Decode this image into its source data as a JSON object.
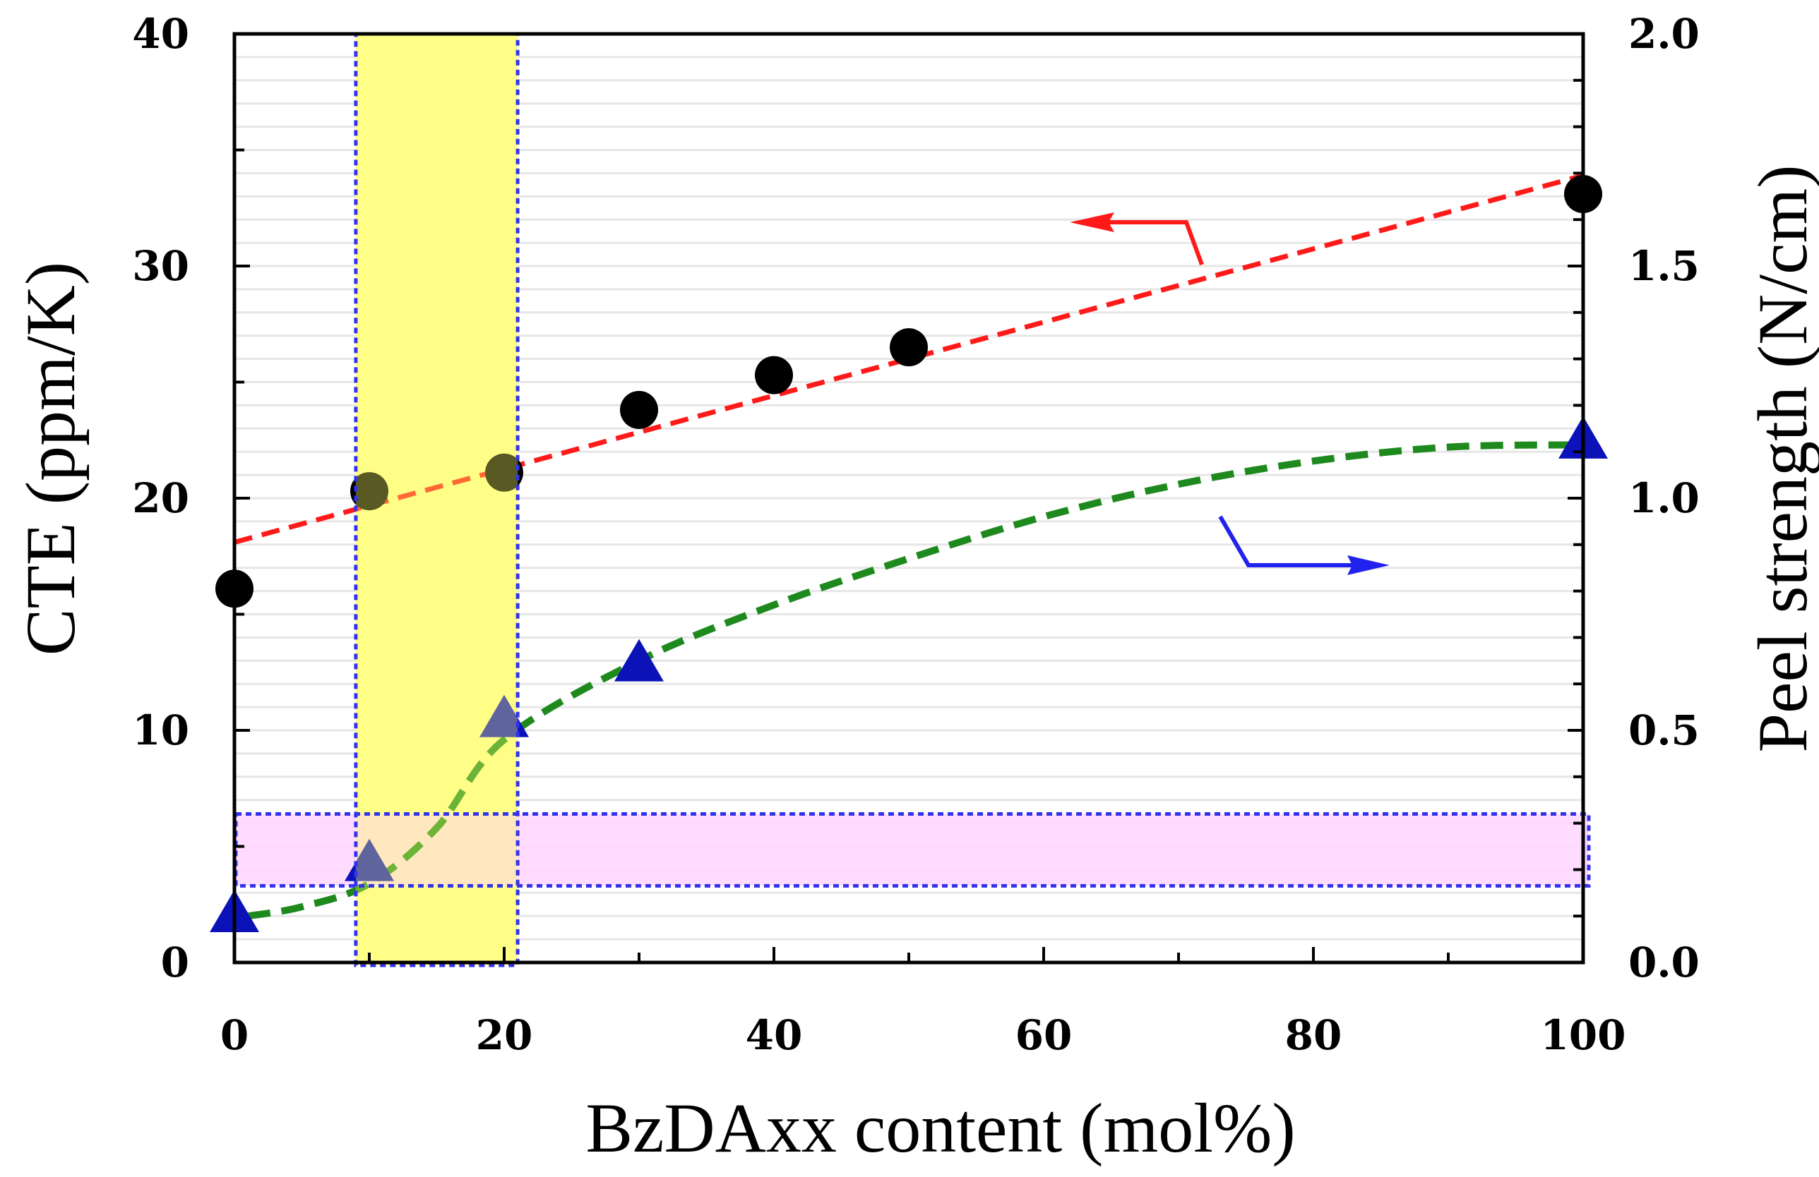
{
  "chart_data": {
    "type": "scatter",
    "title": "",
    "xlabel": "BzDAxx content (mol%)",
    "ylabel": "CTE (ppm/K)",
    "y2label": "Peel strength (N/cm)",
    "xlim": [
      0,
      100
    ],
    "ylim": [
      0,
      40
    ],
    "y2lim": [
      0,
      2.0
    ],
    "x_ticks": [
      "0",
      "20",
      "40",
      "60",
      "80",
      "100"
    ],
    "y_ticks": [
      "0",
      "10",
      "20",
      "30",
      "40"
    ],
    "y2_ticks": [
      "0.0",
      "0.5",
      "1.0",
      "1.5",
      "2.0"
    ],
    "grid": "horizontal light",
    "series": [
      {
        "name": "CTE",
        "axis": "left",
        "marker": "circle",
        "color": "#000000",
        "x": [
          0,
          10,
          20,
          30,
          40,
          50,
          100
        ],
        "y": [
          16.1,
          20.3,
          21.1,
          23.8,
          25.3,
          26.5,
          33.1
        ]
      },
      {
        "name": "Peel strength",
        "axis": "right",
        "marker": "triangle",
        "color": "#0a12b8",
        "x": [
          0,
          10,
          20,
          30,
          100
        ],
        "y": [
          0.1,
          0.21,
          0.52,
          0.64,
          1.12
        ]
      }
    ],
    "fit_lines": [
      {
        "name": "CTE trend",
        "axis": "left",
        "style": "dashed",
        "color": "#ff1a1a",
        "x": [
          0,
          100
        ],
        "y": [
          18.1,
          33.9
        ]
      },
      {
        "name": "Peel strength trend",
        "axis": "right",
        "style": "dashed",
        "color": "#1e8a1e",
        "x": [
          1,
          5,
          10,
          15,
          20,
          30,
          40,
          50,
          60,
          70,
          80,
          90,
          100
        ],
        "y": [
          0.1,
          0.12,
          0.17,
          0.29,
          0.48,
          0.65,
          0.77,
          0.87,
          0.96,
          1.03,
          1.08,
          1.11,
          1.115
        ]
      }
    ],
    "highlights": [
      {
        "name": "selected composition range",
        "orientation": "vertical",
        "axis": "x",
        "range": [
          9,
          21
        ],
        "fill": "#ffff99"
      },
      {
        "name": "target CTE band",
        "orientation": "horizontal",
        "axis": "left",
        "range": [
          3.3,
          6.4
        ],
        "fill": "#ffd6ff"
      }
    ],
    "annotations": [
      {
        "name": "arrow-to-left-axis",
        "meaning": "red arrow points to CTE (left) axis"
      },
      {
        "name": "arrow-to-right-axis",
        "meaning": "blue arrow points to Peel strength (right) axis"
      }
    ]
  },
  "colors": {
    "cte_fit": "#ff1a1a",
    "peel_fit": "#1e8a1e",
    "cte_marker": "#000000",
    "peel_marker": "#0a12b8",
    "highlight_border": "#3333ee",
    "highlight_vertical": "#ffff99",
    "highlight_horizontal": "#ffd6ff",
    "left_arrow": "#ff1a1a",
    "right_arrow": "#2222ee"
  }
}
